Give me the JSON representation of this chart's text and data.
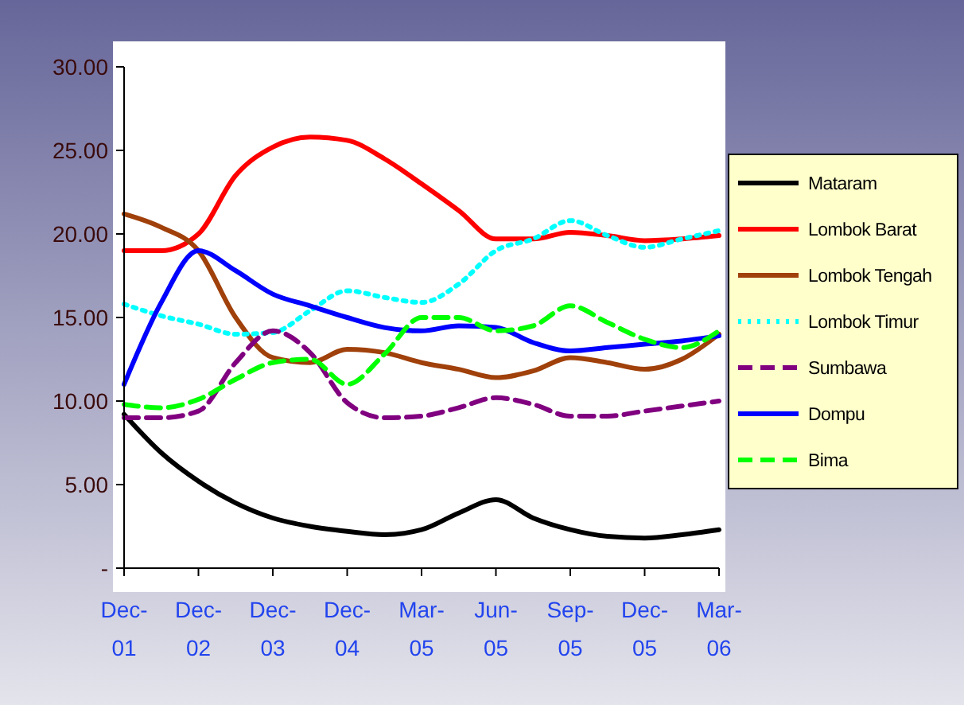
{
  "chart_data": {
    "type": "line",
    "categories": [
      "Dec-01",
      null,
      "Dec-02",
      null,
      "Dec-03",
      null,
      "Dec-04",
      null,
      "Mar-05",
      null,
      "Jun-05",
      null,
      "Sep-05",
      null,
      "Dec-05",
      null,
      "Mar-06"
    ],
    "ylim": [
      0,
      30
    ],
    "yticks": [
      {
        "value": 0,
        "label": "-"
      },
      {
        "value": 5,
        "label": "5.00"
      },
      {
        "value": 10,
        "label": "10.00"
      },
      {
        "value": 15,
        "label": "15.00"
      },
      {
        "value": 20,
        "label": "20.00"
      },
      {
        "value": 25,
        "label": "25.00"
      },
      {
        "value": 30,
        "label": "30.00"
      }
    ],
    "grid": false,
    "legend": "right",
    "marker": "none",
    "series": [
      {
        "name": "Mataram",
        "color": "#000000",
        "line_style": "solid",
        "values": [
          9.2,
          6.9,
          5.2,
          3.9,
          3.0,
          2.5,
          2.2,
          2.0,
          2.3,
          3.3,
          4.1,
          3.0,
          2.3,
          1.9,
          1.8,
          2.0,
          2.3
        ]
      },
      {
        "name": "Lombok Barat",
        "color": "#ff0000",
        "line_style": "solid",
        "values": [
          19.0,
          19.0,
          20.0,
          23.5,
          25.2,
          25.8,
          25.6,
          24.5,
          23.0,
          21.4,
          19.7,
          19.7,
          20.1,
          19.9,
          19.6,
          19.7,
          19.9
        ]
      },
      {
        "name": "Lombok Tengah",
        "color": "#a0400a",
        "line_style": "solid",
        "values": [
          21.2,
          20.4,
          19.0,
          15.0,
          12.6,
          12.3,
          13.1,
          12.9,
          12.3,
          11.9,
          11.4,
          11.8,
          12.6,
          12.3,
          11.9,
          12.5,
          14.0
        ]
      },
      {
        "name": "Lombok Timur",
        "color": "#00ffff",
        "line_style": "dotted",
        "values": [
          15.8,
          15.1,
          14.6,
          14.0,
          14.1,
          15.4,
          16.6,
          16.2,
          15.9,
          17.0,
          19.0,
          19.7,
          20.8,
          19.9,
          19.2,
          19.7,
          20.2
        ]
      },
      {
        "name": "Sumbawa",
        "color": "#800080",
        "line_style": "dashed",
        "values": [
          9.0,
          9.0,
          9.4,
          12.3,
          14.2,
          12.9,
          9.9,
          9.0,
          9.1,
          9.6,
          10.2,
          9.8,
          9.1,
          9.1,
          9.4,
          9.7,
          10.0
        ]
      },
      {
        "name": "Dompu",
        "color": "#0000ff",
        "line_style": "solid",
        "values": [
          11.0,
          15.9,
          19.0,
          17.8,
          16.4,
          15.7,
          15.0,
          14.4,
          14.2,
          14.5,
          14.4,
          13.5,
          13.0,
          13.2,
          13.4,
          13.6,
          13.9
        ]
      },
      {
        "name": "Bima",
        "color": "#00ff00",
        "line_style": "dashed",
        "values": [
          9.8,
          9.6,
          10.1,
          11.3,
          12.3,
          12.5,
          11.0,
          12.8,
          15.0,
          15.0,
          14.2,
          14.5,
          15.7,
          14.7,
          13.7,
          13.2,
          14.2
        ]
      }
    ]
  }
}
